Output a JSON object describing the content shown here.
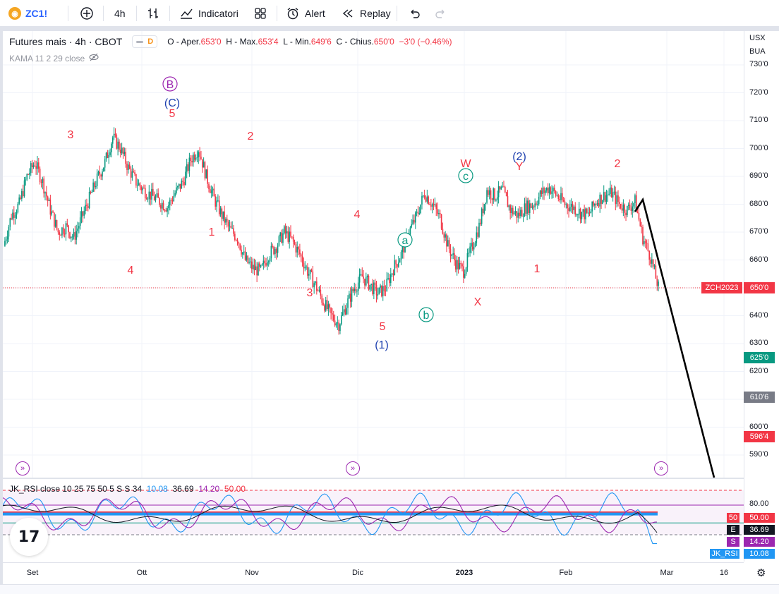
{
  "toolbar": {
    "symbol": "ZC1!",
    "interval": "4h",
    "indicators_label": "Indicatori",
    "alert_label": "Alert",
    "replay_label": "Replay"
  },
  "legend": {
    "title": "Futures mais · 4h · CBOT",
    "delay_badge": "D",
    "ohlc": [
      {
        "label": "O - Aper.",
        "value": "653'0"
      },
      {
        "label": "H - Max.",
        "value": "653'4"
      },
      {
        "label": "L - Min.",
        "value": "649'6"
      },
      {
        "label": "C - Chius.",
        "value": "650'0"
      },
      {
        "label": "",
        "value": "−3'0 (−0.46%)"
      }
    ],
    "kama": "KAMA 11 2 29 close"
  },
  "rsi_legend": {
    "name": "JK_RSI close 10 25 75 50 5 S S 34",
    "v1": "10.08",
    "v2": "36.69",
    "v3": "14.20",
    "v4": "50.00"
  },
  "axis": {
    "currency": "USX",
    "unit": "BUA",
    "price_ticks": [
      "730'0",
      "720'0",
      "710'0",
      "700'0",
      "690'0",
      "680'0",
      "670'0",
      "660'0",
      "650'0",
      "640'0",
      "630'0",
      "620'0",
      "610'0",
      "600'0",
      "590'0"
    ],
    "rsi_ticks": [
      "80.00"
    ],
    "time_labels": [
      "Set",
      "Ott",
      "Nov",
      "Dic",
      "2023",
      "Feb",
      "Mar",
      "16"
    ]
  },
  "price_tags": [
    {
      "label": "ZCH2023",
      "value": "650'0",
      "color": "#f23645"
    },
    {
      "value": "625'0",
      "color": "#089981"
    },
    {
      "value": "610'6",
      "color": "#787b86"
    },
    {
      "value": "596'4",
      "color": "#f23645"
    }
  ],
  "rsi_tags": [
    {
      "label": "50",
      "value": "50.00",
      "color": "#f23645"
    },
    {
      "label": "E",
      "value": "36.69",
      "color": "#131722"
    },
    {
      "label": "S",
      "value": "14.20",
      "color": "#9c27b0"
    },
    {
      "label": "JK_RSI",
      "value": "10.08",
      "color": "#2196f3"
    }
  ],
  "wave_labels": [
    {
      "text": "3",
      "color": "#f23645"
    },
    {
      "text": "4",
      "color": "#f23645"
    },
    {
      "text": "B",
      "color": "#9c27b0"
    },
    {
      "text": "(C)",
      "color": "#1e40af"
    },
    {
      "text": "5",
      "color": "#f23645"
    },
    {
      "text": "1",
      "color": "#f23645"
    },
    {
      "text": "2",
      "color": "#f23645"
    },
    {
      "text": "3",
      "color": "#f23645"
    },
    {
      "text": "4",
      "color": "#f23645"
    },
    {
      "text": "5",
      "color": "#f23645"
    },
    {
      "text": "(1)",
      "color": "#1e40af"
    },
    {
      "text": "a",
      "color": "#089981"
    },
    {
      "text": "b",
      "color": "#089981"
    },
    {
      "text": "W",
      "color": "#f23645"
    },
    {
      "text": "c",
      "color": "#089981"
    },
    {
      "text": "X",
      "color": "#f23645"
    },
    {
      "text": "(2)",
      "color": "#1e40af"
    },
    {
      "text": "Y",
      "color": "#f23645"
    },
    {
      "text": "1",
      "color": "#f23645"
    },
    {
      "text": "2",
      "color": "#f23645"
    }
  ],
  "chart_data": {
    "type": "line",
    "ylim": [
      585,
      735
    ],
    "last_price": 650.0,
    "series": [
      {
        "values": [
          665,
          676,
          680,
          690,
          695,
          688,
          678,
          670,
          672,
          668,
          675,
          682,
          689,
          695,
          704,
          700,
          693,
          688,
          685,
          683,
          681,
          679,
          684,
          688,
          696,
          700,
          690,
          682,
          676,
          671,
          668,
          660,
          657,
          656,
          662,
          665,
          670,
          667,
          662,
          656,
          651,
          645,
          640,
          637,
          644,
          650,
          654,
          651,
          648,
          650,
          657,
          662,
          670,
          676,
          684,
          680,
          675,
          665,
          659,
          656,
          664,
          672,
          685,
          683,
          685,
          678,
          676,
          679,
          680,
          684,
          686,
          683,
          680,
          679,
          677,
          676,
          681,
          683,
          684,
          680,
          678,
          681,
          668,
          661,
          650
        ]
      }
    ],
    "projection": [
      [
        681.0,
        583.0
      ]
    ]
  }
}
